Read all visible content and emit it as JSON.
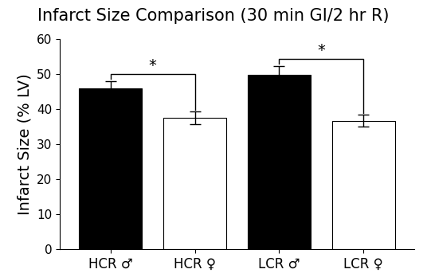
{
  "chart_data": {
    "type": "bar",
    "title": "Infarct Size Comparison (30 min GI/2 hr R)",
    "y_label": "Infarct Size (% LV)",
    "categories": [
      "HCR ♂",
      "HCR ♀",
      "LCR ♂",
      "LCR ♀"
    ],
    "values": [
      45.8,
      37.4,
      49.8,
      36.6
    ],
    "errors": [
      2.2,
      1.8,
      2.5,
      1.7
    ],
    "colors": [
      "#000000",
      "#ffffff",
      "#000000",
      "#ffffff"
    ],
    "ylim": [
      0,
      60
    ],
    "yticks": [
      0,
      10,
      20,
      30,
      40,
      50,
      60
    ],
    "grid": false,
    "significance": [
      {
        "pair": [
          0,
          1
        ],
        "label": "*"
      },
      {
        "pair": [
          2,
          3
        ],
        "label": "*"
      }
    ]
  }
}
